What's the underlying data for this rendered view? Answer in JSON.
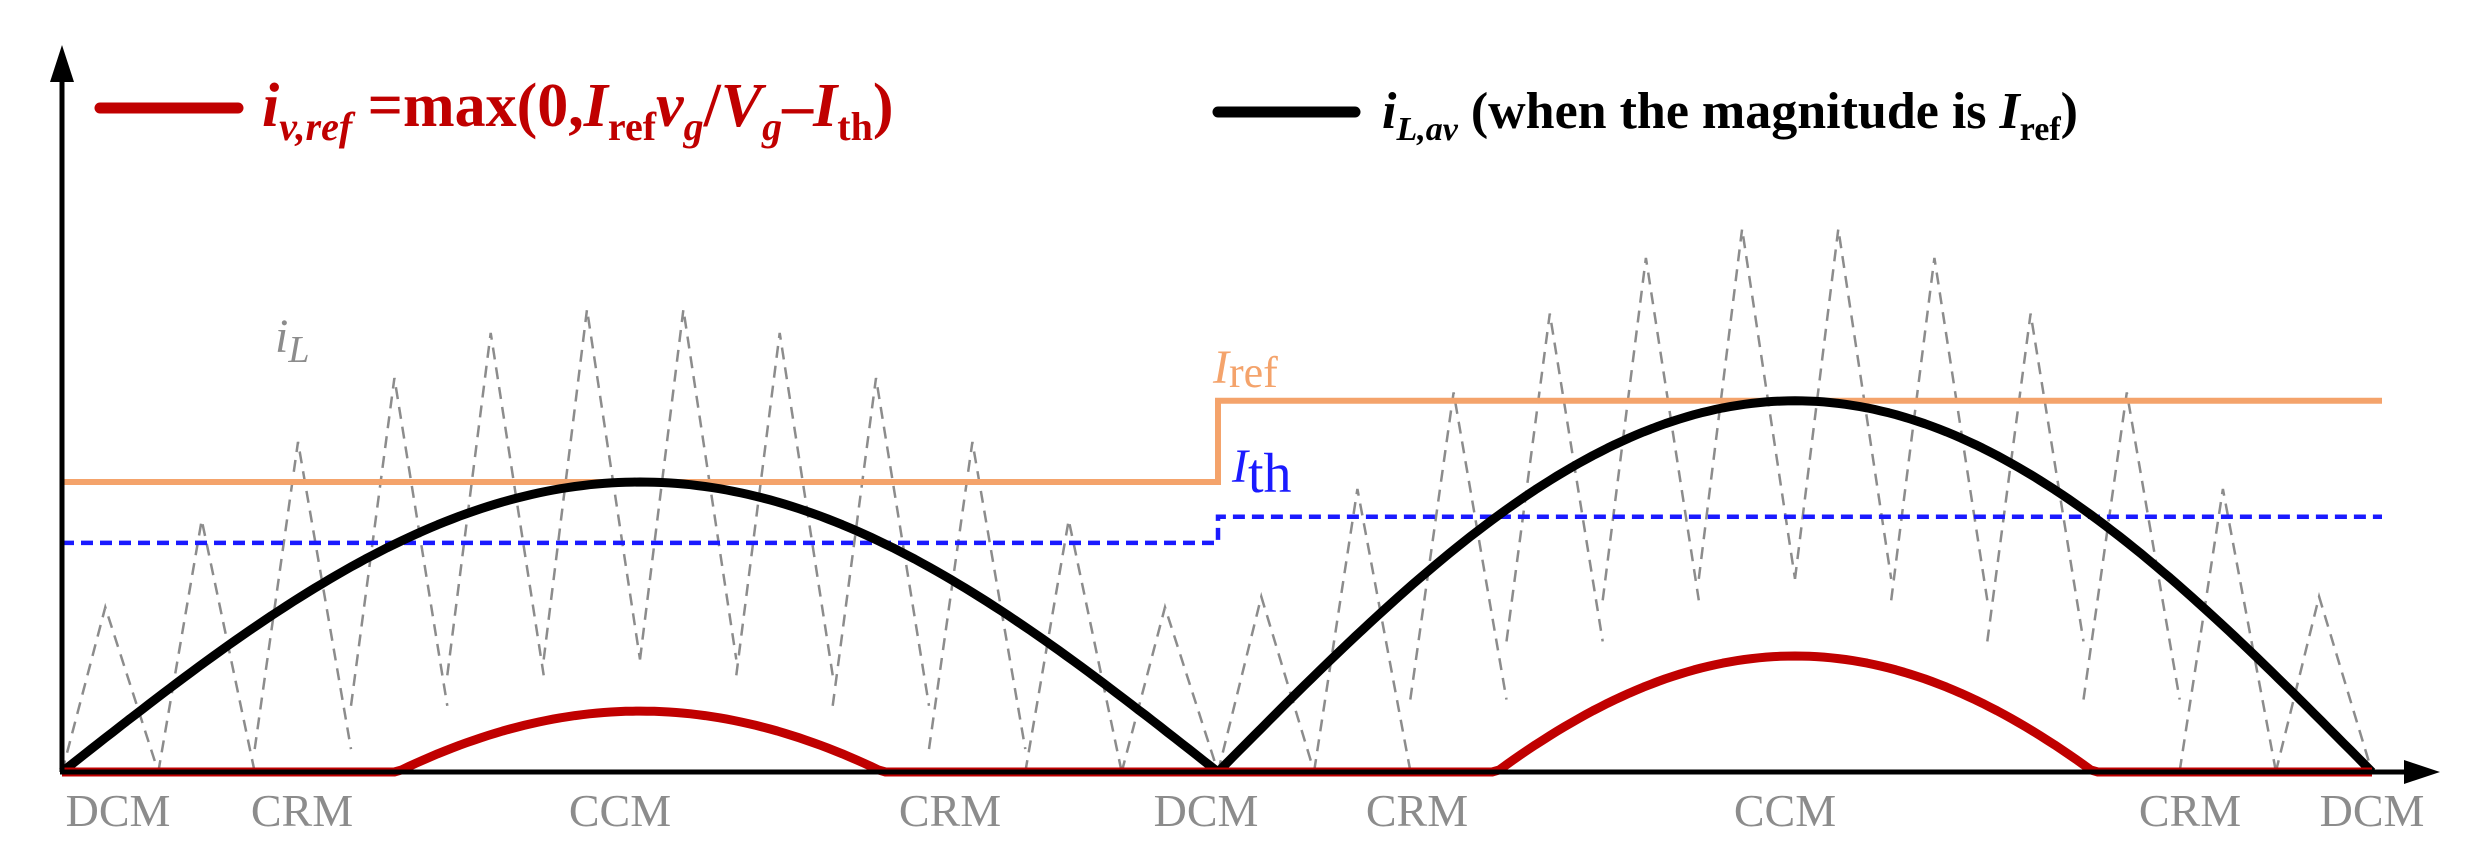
{
  "colors": {
    "iv_ref": "#c00000",
    "iL_av": "#000000",
    "iL": "#8c8c8c",
    "Iref": "#f4a36b",
    "Ith": "#1a1aff",
    "axes": "#000000",
    "mode_labels": "#8c8c8c"
  },
  "legend": {
    "red": {
      "symbol": "i",
      "subscript": "v,ref",
      "expr_prefix": " =max(0,",
      "expr_I": "I",
      "expr_I_sub": "ref",
      "expr_v": "v",
      "expr_v_sub": "g",
      "expr_div": "/",
      "expr_V": "V",
      "expr_V_sub": "g",
      "expr_minus": "–",
      "expr_Ith": "I",
      "expr_Ith_sub": "th",
      "expr_close": ")"
    },
    "black": {
      "symbol": "i",
      "subscript": "L,av",
      "text_prefix": " (when the magnitude is ",
      "text_I": "I",
      "text_I_sub": "ref",
      "text_close": ")"
    }
  },
  "curve_labels": {
    "iL": {
      "symbol": "i",
      "subscript": "L"
    },
    "Iref": {
      "symbol": "I",
      "subscript": "ref"
    },
    "Ith": {
      "symbol": "I",
      "subscript": "th"
    }
  },
  "mode_labels": [
    "DCM",
    "CRM",
    "CCM",
    "CRM",
    "DCM",
    "CRM",
    "CCM",
    "CRM",
    "DCM"
  ],
  "chart_data": {
    "type": "line",
    "description_units": "arbitrary; two half-line cycles",
    "half_cycles": [
      {
        "t_start": 0.0,
        "t_end": 1.0,
        "Iref": 1.0,
        "Ith": 0.79,
        "iL_av_peak": 1.0
      },
      {
        "t_start": 1.0,
        "t_end": 2.0,
        "Iref": 1.28,
        "Ith": 0.88,
        "iL_av_peak": 1.28
      }
    ],
    "series": [
      {
        "name": "i_v,ref",
        "shape": "max(0, Iref*sin - Ith)"
      },
      {
        "name": "i_L,av",
        "shape": "Iref*sin"
      },
      {
        "name": "i_L",
        "shape": "triangular ripple around i_L,av"
      },
      {
        "name": "I_ref",
        "shape": "step"
      },
      {
        "name": "I_th",
        "shape": "step"
      }
    ],
    "modes": [
      "DCM",
      "CRM",
      "CCM",
      "CRM",
      "DCM",
      "CRM",
      "CCM",
      "CRM",
      "DCM"
    ]
  }
}
